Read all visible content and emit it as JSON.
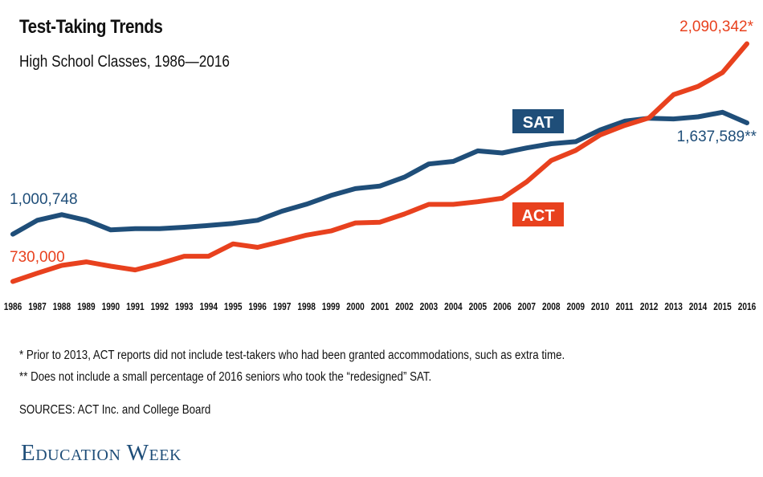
{
  "title": "Test-Taking Trends",
  "subtitle": "High School Classes, 1986—2016",
  "notes": {
    "act": "* Prior to 2013, ACT reports did not include test-takers who had been granted accommodations, such as extra time.",
    "sat": "** Does not include a small percentage of 2016 seniors who took the “redesigned” SAT.",
    "sources": "SOURCES: ACT Inc. and College Board"
  },
  "logo": "Education Week",
  "chart_data": {
    "type": "line",
    "categories": [
      "1986",
      "1987",
      "1988",
      "1989",
      "1990",
      "1991",
      "1992",
      "1993",
      "1994",
      "1995",
      "1996",
      "1997",
      "1998",
      "1999",
      "2000",
      "2001",
      "2002",
      "2003",
      "2004",
      "2005",
      "2006",
      "2007",
      "2008",
      "2009",
      "2010",
      "2011",
      "2012",
      "2013",
      "2014",
      "2015",
      "2016"
    ],
    "ylim": [
      700000,
      2120000
    ],
    "grid": false,
    "legend": "inline labels",
    "series": [
      {
        "name": "SAT",
        "color": "#1f4e79",
        "values": [
          1000748,
          1080000,
          1112000,
          1080000,
          1025000,
          1032000,
          1032000,
          1040000,
          1050000,
          1062000,
          1080000,
          1132000,
          1172000,
          1222000,
          1261000,
          1276000,
          1327000,
          1402000,
          1417000,
          1477000,
          1465000,
          1494000,
          1518000,
          1530000,
          1597000,
          1647000,
          1664000,
          1660000,
          1672000,
          1698000,
          1637589
        ],
        "start_label": "1,000,748",
        "end_label": "1,637,589**"
      },
      {
        "name": "ACT",
        "color": "#e8411e",
        "values": [
          730000,
          777000,
          822000,
          842000,
          817000,
          796000,
          832000,
          874000,
          874000,
          945000,
          925000,
          959000,
          995000,
          1019000,
          1065000,
          1069000,
          1116000,
          1171000,
          1171000,
          1186000,
          1206000,
          1300000,
          1422000,
          1480000,
          1568000,
          1623000,
          1666000,
          1799000,
          1846000,
          1925000,
          2090342
        ],
        "end_label": "2,090,342*",
        "start_label": "730,000"
      }
    ]
  }
}
